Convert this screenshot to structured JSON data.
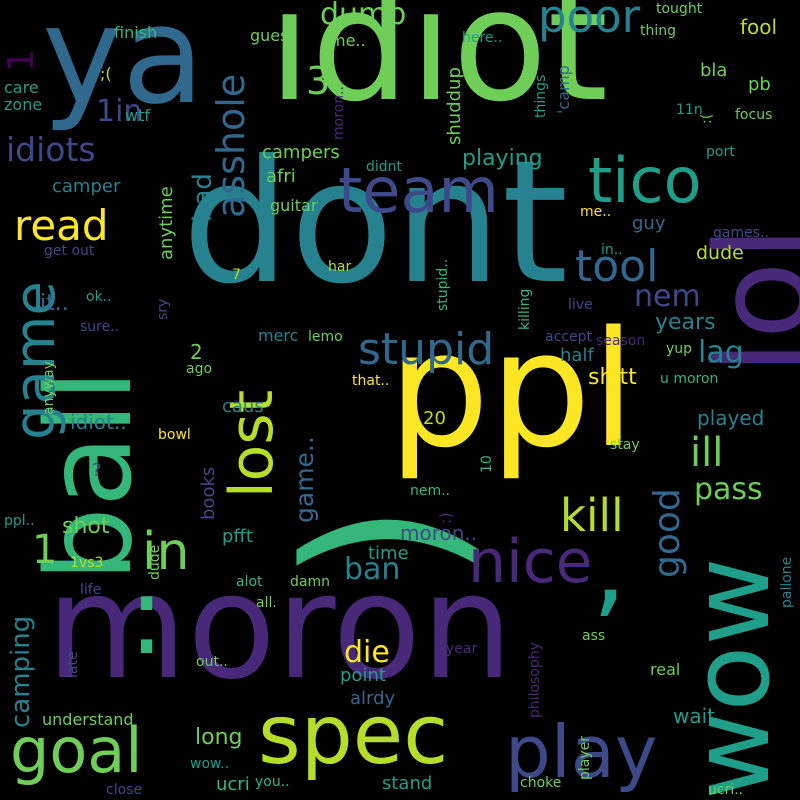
{
  "palette": {
    "background": "#000000",
    "yellow": "#fde725",
    "lime": "#b5de2b",
    "green": "#6ece58",
    "emerald": "#35b779",
    "teal": "#1f9e89",
    "blue": "#26828e",
    "slate": "#31688e",
    "indigo": "#3e4989",
    "purple": "#482878",
    "deep": "#440154"
  },
  "words": [
    {
      "id": "idiot",
      "text": "idiot"
    },
    {
      "id": "ya",
      "text": "ya"
    },
    {
      "id": "dont",
      "text": "dont"
    },
    {
      "id": "ppl",
      "text": "ppl"
    },
    {
      "id": "moron",
      "text": "moron"
    },
    {
      "id": "paren",
      "text": ")"
    },
    {
      "id": "ball",
      "text": "ball"
    },
    {
      "id": "lol",
      "text": "lol"
    },
    {
      "id": "wow",
      "text": "wow"
    },
    {
      "id": "colon",
      "text": ":"
    },
    {
      "id": "comma",
      "text": ","
    },
    {
      "id": "team",
      "text": "team"
    },
    {
      "id": "tico",
      "text": "tico"
    },
    {
      "id": "spec",
      "text": "spec"
    },
    {
      "id": "play",
      "text": "play"
    },
    {
      "id": "goal",
      "text": "goal"
    },
    {
      "id": "nice",
      "text": "nice"
    },
    {
      "id": "lost",
      "text": "lost"
    },
    {
      "id": "game",
      "text": "game"
    },
    {
      "id": "stupid",
      "text": "stupid"
    },
    {
      "id": "poor",
      "text": "poor"
    },
    {
      "id": "kill",
      "text": "kill"
    },
    {
      "id": "tool",
      "text": "tool"
    },
    {
      "id": "asshole",
      "text": "asshole"
    },
    {
      "id": "in",
      "text": "in"
    },
    {
      "id": "ill",
      "text": "ill"
    },
    {
      "id": "good",
      "text": "good"
    },
    {
      "id": "idiots",
      "text": "idiots"
    },
    {
      "id": "read",
      "text": "read"
    },
    {
      "id": "pass",
      "text": "pass"
    },
    {
      "id": "lag",
      "text": "lag"
    },
    {
      "id": "nem",
      "text": "nem"
    },
    {
      "id": "one",
      "text": "1"
    },
    {
      "id": "three",
      "text": "3"
    },
    {
      "id": "dumb",
      "text": "dumb"
    },
    {
      "id": "oneIn",
      "text": "1in"
    },
    {
      "id": "years",
      "text": "years"
    },
    {
      "id": "die",
      "text": "die"
    },
    {
      "id": "ban",
      "text": "ban"
    },
    {
      "id": "camping",
      "text": "camping"
    },
    {
      "id": "gameDots",
      "text": "game.."
    },
    {
      "id": "bad",
      "text": "bad"
    },
    {
      "id": "playing",
      "text": "playing"
    },
    {
      "id": "shitt",
      "text": "shitt"
    },
    {
      "id": "played",
      "text": "played"
    },
    {
      "id": "shot",
      "text": "shot"
    },
    {
      "id": "long",
      "text": "long"
    },
    {
      "id": "wait",
      "text": "wait"
    },
    {
      "id": "stand",
      "text": "stand"
    },
    {
      "id": "itDots",
      "text": "it.."
    },
    {
      "id": "idiotDots",
      "text": "idiot.."
    },
    {
      "id": "moronDots",
      "text": "moron.."
    },
    {
      "id": "point",
      "text": "point"
    },
    {
      "id": "alrdy",
      "text": "alrdy"
    },
    {
      "id": "half",
      "text": "half"
    },
    {
      "id": "caus",
      "text": "caus"
    },
    {
      "id": "pfft",
      "text": "pfft"
    },
    {
      "id": "time",
      "text": "time"
    },
    {
      "id": "books",
      "text": "books"
    },
    {
      "id": "dude",
      "text": "dude"
    },
    {
      "id": "guy",
      "text": "guy"
    },
    {
      "id": "fool",
      "text": "fool"
    },
    {
      "id": "anytime",
      "text": "anytime"
    },
    {
      "id": "camper",
      "text": "camper"
    },
    {
      "id": "campers",
      "text": "campers"
    },
    {
      "id": "afri",
      "text": "afri"
    },
    {
      "id": "guitar",
      "text": "guitar"
    },
    {
      "id": "shuddup",
      "text": "shuddup"
    },
    {
      "id": "bla",
      "text": "bla"
    },
    {
      "id": "pb",
      "text": "pb"
    },
    {
      "id": "merc",
      "text": "merc"
    },
    {
      "id": "understand",
      "text": "understand"
    },
    {
      "id": "ucri",
      "text": "ucri"
    },
    {
      "id": "oneVs3",
      "text": "1vs3"
    },
    {
      "id": "oneLarge",
      "text": "1"
    },
    {
      "id": "finish",
      "text": "finish"
    },
    {
      "id": "care",
      "text": "care"
    },
    {
      "id": "zone",
      "text": "zone"
    },
    {
      "id": "sadFace",
      "text": ";("
    },
    {
      "id": "wtf",
      "text": "wtf"
    },
    {
      "id": "guess",
      "text": "guess"
    },
    {
      "id": "meDots",
      "text": "me.."
    },
    {
      "id": "meDots2",
      "text": "me.."
    },
    {
      "id": "moronDots2",
      "text": "moron.."
    },
    {
      "id": "hereDots",
      "text": "here.."
    },
    {
      "id": "things",
      "text": "things"
    },
    {
      "id": "camp",
      "text": "'camp"
    },
    {
      "id": "thing",
      "text": "thing"
    },
    {
      "id": "tought",
      "text": "tought"
    },
    {
      "id": "elevenN",
      "text": "11n"
    },
    {
      "id": "focus",
      "text": "focus"
    },
    {
      "id": "port",
      "text": "port"
    },
    {
      "id": "didnt",
      "text": "didnt"
    },
    {
      "id": "gamesDots",
      "text": "games.."
    },
    {
      "id": "inDots",
      "text": "in.."
    },
    {
      "id": "getOut",
      "text": "get out"
    },
    {
      "id": "seven",
      "text": "7"
    },
    {
      "id": "har",
      "text": "har"
    },
    {
      "id": "stupidDots",
      "text": "stupid.."
    },
    {
      "id": "killing",
      "text": "killing"
    },
    {
      "id": "live",
      "text": "live"
    },
    {
      "id": "accept",
      "text": "accept"
    },
    {
      "id": "season",
      "text": "season"
    },
    {
      "id": "yup",
      "text": "yup"
    },
    {
      "id": "uMoron",
      "text": "u moron"
    },
    {
      "id": "okDots",
      "text": "ok.."
    },
    {
      "id": "sureDots",
      "text": "sure.."
    },
    {
      "id": "sry",
      "text": "sry"
    },
    {
      "id": "lemo",
      "text": "lemo"
    },
    {
      "id": "two",
      "text": "2"
    },
    {
      "id": "ago",
      "text": "ago"
    },
    {
      "id": "thatDots",
      "text": "that.."
    },
    {
      "id": "anyway",
      "text": "anyway"
    },
    {
      "id": "bowl",
      "text": "bowl"
    },
    {
      "id": "twenty",
      "text": "20"
    },
    {
      "id": "stay",
      "text": "stay"
    },
    {
      "id": "ten",
      "text": "10"
    },
    {
      "id": "nemDots",
      "text": "nem.."
    },
    {
      "id": "question",
      "text": "?"
    },
    {
      "id": "pplDots",
      "text": "ppl.."
    },
    {
      "id": "smiley",
      "text": ":)"
    },
    {
      "id": "dude2",
      "text": "dude"
    },
    {
      "id": "alot",
      "text": "alot"
    },
    {
      "id": "damn",
      "text": "damn"
    },
    {
      "id": "life",
      "text": "life"
    },
    {
      "id": "allDots",
      "text": "all."
    },
    {
      "id": "philosophy",
      "text": "philosophy"
    },
    {
      "id": "ass",
      "text": "ass"
    },
    {
      "id": "year",
      "text": "year"
    },
    {
      "id": "late",
      "text": "late"
    },
    {
      "id": "outDots",
      "text": "out.."
    },
    {
      "id": "real",
      "text": "real"
    },
    {
      "id": "player",
      "text": "player"
    },
    {
      "id": "pallone",
      "text": "pallone"
    },
    {
      "id": "wowDots",
      "text": "wow.."
    },
    {
      "id": "youDots",
      "text": "you.."
    },
    {
      "id": "close",
      "text": "close"
    },
    {
      "id": "choke",
      "text": "choke"
    },
    {
      "id": "ucriDots",
      "text": "ucri.."
    },
    {
      "id": "smiley2",
      "text": ":("
    }
  ]
}
